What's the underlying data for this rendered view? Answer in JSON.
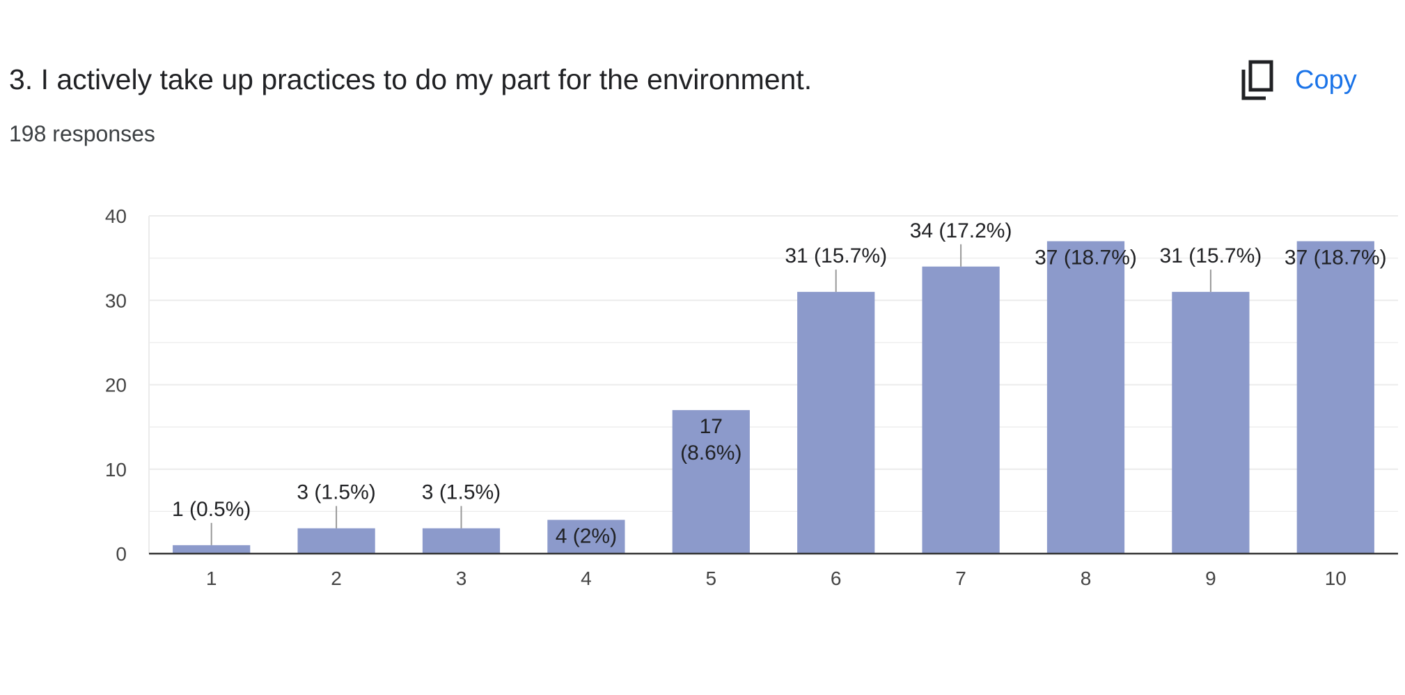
{
  "question": {
    "title": "3. I actively take up practices to do my part for the environment.",
    "responses": "198 responses"
  },
  "toolbar": {
    "copy_label": "Copy",
    "copy_icon": "copy-icon"
  },
  "colors": {
    "bar": "#8c9acb",
    "accent": "#1a73e8",
    "grid": "#ebebeb",
    "axis": "#333333"
  },
  "chart_data": {
    "type": "bar",
    "categories": [
      "1",
      "2",
      "3",
      "4",
      "5",
      "6",
      "7",
      "8",
      "9",
      "10"
    ],
    "values": [
      1,
      3,
      3,
      4,
      17,
      31,
      34,
      37,
      31,
      37
    ],
    "data_labels": [
      [
        "1 (0.5%)"
      ],
      [
        "3 (1.5%)"
      ],
      [
        "3 (1.5%)"
      ],
      [
        "4 (2%)"
      ],
      [
        "17",
        "(8.6%)"
      ],
      [
        "31 (15.7%)"
      ],
      [
        "34 (17.2%)"
      ],
      [
        "37 (18.7%)"
      ],
      [
        "31 (15.7%)"
      ],
      [
        "37 (18.7%)"
      ]
    ],
    "label_placement": [
      "above",
      "above",
      "above",
      "inside",
      "inside",
      "above",
      "above",
      "inside",
      "above",
      "inside"
    ],
    "yticks": [
      "0",
      "10",
      "20",
      "30",
      "40"
    ],
    "ylim": [
      0,
      40
    ],
    "grid": true,
    "title": "",
    "xlabel": "",
    "ylabel": ""
  }
}
